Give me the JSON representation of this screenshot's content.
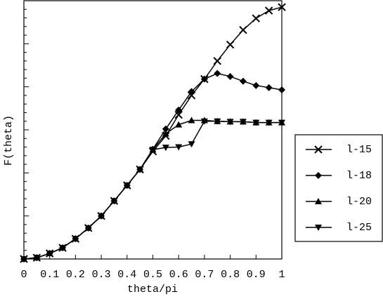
{
  "chart_data": {
    "type": "line",
    "x_label": "theta/pi",
    "y_label": "F(theta)",
    "x": [
      0,
      0.05,
      0.1,
      0.15,
      0.2,
      0.25,
      0.3,
      0.35,
      0.4,
      0.45,
      0.5,
      0.55,
      0.6,
      0.65,
      0.7,
      0.75,
      0.8,
      0.85,
      0.9,
      0.95,
      1
    ],
    "xlim": [
      0,
      1
    ],
    "xticks": [
      0,
      0.1,
      0.2,
      0.3,
      0.4,
      0.5,
      0.6,
      0.7,
      0.8,
      0.9,
      1
    ],
    "ylim": [
      0,
      6
    ],
    "yticks": [
      0,
      1,
      2,
      3,
      4,
      5,
      6
    ],
    "legend": "right",
    "series": [
      {
        "name": "l-15",
        "color": "#000000",
        "marker": "x",
        "values": [
          0,
          0.03,
          0.13,
          0.26,
          0.47,
          0.72,
          1.0,
          1.35,
          1.71,
          2.08,
          2.5,
          2.86,
          3.35,
          3.8,
          4.18,
          4.6,
          4.98,
          5.32,
          5.59,
          5.77,
          5.85
        ]
      },
      {
        "name": "l-18",
        "color": "#000000",
        "marker": "diamond",
        "values": [
          0,
          0.03,
          0.13,
          0.26,
          0.47,
          0.72,
          1.0,
          1.35,
          1.71,
          2.08,
          2.55,
          3.02,
          3.46,
          3.89,
          4.18,
          4.31,
          4.24,
          4.13,
          4.03,
          3.98,
          3.93
        ]
      },
      {
        "name": "l-20",
        "color": "#000000",
        "marker": "triangle-up",
        "values": [
          0,
          0.03,
          0.13,
          0.26,
          0.47,
          0.72,
          1.0,
          1.35,
          1.71,
          2.08,
          2.54,
          2.91,
          3.12,
          3.22,
          3.22,
          3.2,
          3.19,
          3.19,
          3.17,
          3.17,
          3.17
        ]
      },
      {
        "name": "l-25",
        "color": "#000000",
        "marker": "triangle-down",
        "values": [
          0,
          0.03,
          0.13,
          0.26,
          0.47,
          0.72,
          1.0,
          1.35,
          1.71,
          2.08,
          2.54,
          2.59,
          2.6,
          2.67,
          3.2,
          3.2,
          3.19,
          3.19,
          3.17,
          3.17,
          3.17
        ]
      }
    ]
  }
}
